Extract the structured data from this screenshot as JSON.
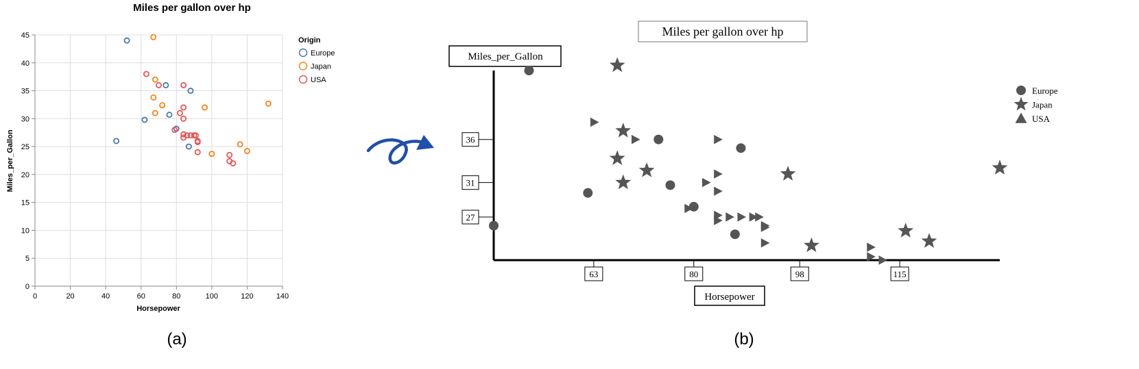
{
  "chart_data": [
    {
      "type": "scatter",
      "panel_label": "(a)",
      "title": "Miles per gallon over hp",
      "xlabel": "Horsepower",
      "ylabel": "Miles_per_Gallon",
      "xlim": [
        0,
        140
      ],
      "ylim": [
        0,
        45
      ],
      "x_ticks": [
        0,
        20,
        40,
        60,
        80,
        100,
        120,
        140
      ],
      "y_ticks": [
        0,
        5,
        10,
        15,
        20,
        25,
        30,
        35,
        40,
        45
      ],
      "grid": true,
      "legend_title": "Origin",
      "legend_placement": "right",
      "series": [
        {
          "name": "Europe",
          "color": "#4c78a8",
          "marker": "open-circle",
          "points": [
            [
              46,
              26
            ],
            [
              52,
              44
            ],
            [
              62,
              29.8
            ],
            [
              74,
              36
            ],
            [
              76,
              30.7
            ],
            [
              80,
              28.2
            ],
            [
              87,
              25
            ],
            [
              88,
              35
            ]
          ]
        },
        {
          "name": "Japan",
          "color": "#f58518",
          "marker": "open-circle",
          "points": [
            [
              67,
              44.6
            ],
            [
              67,
              33.8
            ],
            [
              68,
              37
            ],
            [
              68,
              31
            ],
            [
              72,
              32.4
            ],
            [
              96,
              32
            ],
            [
              100,
              23.7
            ],
            [
              116,
              25.4
            ],
            [
              120,
              24.2
            ],
            [
              132,
              32.7
            ]
          ]
        },
        {
          "name": "USA",
          "color": "#e45756",
          "marker": "open-circle",
          "points": [
            [
              63,
              38
            ],
            [
              70,
              36
            ],
            [
              79,
              28
            ],
            [
              82,
              31
            ],
            [
              84,
              36
            ],
            [
              84,
              32
            ],
            [
              84,
              30
            ],
            [
              84,
              27.2
            ],
            [
              84,
              26.6
            ],
            [
              86,
              27
            ],
            [
              88,
              27
            ],
            [
              90,
              27
            ],
            [
              91,
              27
            ],
            [
              92,
              26
            ],
            [
              92,
              25.8
            ],
            [
              92,
              24
            ],
            [
              110,
              23.5
            ],
            [
              110,
              22.4
            ],
            [
              112,
              22
            ]
          ]
        }
      ]
    },
    {
      "type": "scatter",
      "panel_label": "(b)",
      "title": "Miles per gallon over hp",
      "xlabel": "Horsepower",
      "ylabel": "Miles_per_Gallon",
      "x_ticks": [
        63,
        80,
        98,
        115
      ],
      "y_ticks": [
        27,
        31,
        36
      ],
      "xlim": [
        46,
        132
      ],
      "ylim": [
        22,
        44
      ],
      "grid": false,
      "legend_placement": "right",
      "legend_entries": [
        {
          "name": "Europe",
          "symbol": "circle"
        },
        {
          "name": "Japan",
          "symbol": "star"
        },
        {
          "name": "USA",
          "symbol": "triangle"
        }
      ],
      "series": [
        {
          "name": "Europe",
          "marker": "circle",
          "points": [
            [
              46,
              26
            ],
            [
              52,
              44
            ],
            [
              62,
              29.8
            ],
            [
              74,
              36
            ],
            [
              76,
              30.7
            ],
            [
              80,
              28.2
            ],
            [
              87,
              25
            ],
            [
              88,
              35
            ]
          ]
        },
        {
          "name": "Japan",
          "marker": "star",
          "points": [
            [
              67,
              44.6
            ],
            [
              67,
              33.8
            ],
            [
              68,
              37
            ],
            [
              68,
              31
            ],
            [
              72,
              32.4
            ],
            [
              96,
              32
            ],
            [
              100,
              23.7
            ],
            [
              116,
              25.4
            ],
            [
              120,
              24.2
            ],
            [
              132,
              32.7
            ]
          ]
        },
        {
          "name": "USA",
          "marker": "triangle-right",
          "points": [
            [
              63,
              38
            ],
            [
              70,
              36
            ],
            [
              79,
              28
            ],
            [
              82,
              31
            ],
            [
              84,
              36
            ],
            [
              84,
              32
            ],
            [
              84,
              30
            ],
            [
              84,
              27.2
            ],
            [
              84,
              26.6
            ],
            [
              86,
              27
            ],
            [
              88,
              27
            ],
            [
              90,
              27
            ],
            [
              91,
              27
            ],
            [
              92,
              26
            ],
            [
              92,
              25.8
            ],
            [
              92,
              24
            ],
            [
              110,
              23.5
            ],
            [
              110,
              22.4
            ],
            [
              112,
              22
            ]
          ]
        }
      ]
    }
  ],
  "arrow_color": "#1f4fa8",
  "marker_color_b": "#555555"
}
